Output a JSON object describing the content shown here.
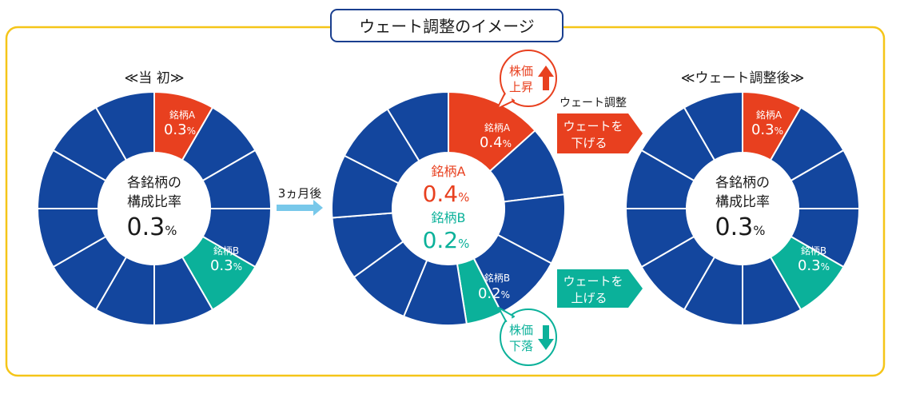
{
  "title": "ウェート調整のイメージ",
  "colors": {
    "frame": "#f5c518",
    "title_border": "#1a3f8f",
    "blue": "#13469e",
    "red": "#e8401f",
    "green": "#0bb19a",
    "arrow_light": "#78c8ea",
    "text_dark": "#1a1a1a"
  },
  "segments_per_ring": 12,
  "left": {
    "heading": "≪当 初≫",
    "center_line1": "各銘柄の",
    "center_line2": "構成比率",
    "center_value": "0.3",
    "center_unit": "%",
    "seg_a_name": "銘柄A",
    "seg_a_value": "0.3",
    "seg_a_unit": "%",
    "seg_b_name": "銘柄B",
    "seg_b_value": "0.3",
    "seg_b_unit": "%"
  },
  "middle": {
    "arrow_label": "3ヵ月後",
    "center_a_name": "銘柄A",
    "center_a_value": "0.4",
    "center_a_unit": "%",
    "center_b_name": "銘柄B",
    "center_b_value": "0.2",
    "center_b_unit": "%",
    "seg_a_name": "銘柄A",
    "seg_a_value": "0.4",
    "seg_a_unit": "%",
    "seg_b_name": "銘柄B",
    "seg_b_value": "0.2",
    "seg_b_unit": "%",
    "bubble_up_line1": "株価",
    "bubble_up_line2": "上昇",
    "bubble_down_line1": "株価",
    "bubble_down_line2": "下落"
  },
  "adjust": {
    "label": "ウェート調整",
    "down_line1": "ウェートを",
    "down_line2": "下げる",
    "up_line1": "ウェートを",
    "up_line2": "上げる"
  },
  "right": {
    "heading": "≪ウェート調整後≫",
    "center_line1": "各銘柄の",
    "center_line2": "構成比率",
    "center_value": "0.3",
    "center_unit": "%",
    "seg_a_name": "銘柄A",
    "seg_a_value": "0.3",
    "seg_a_unit": "%",
    "seg_b_name": "銘柄B",
    "seg_b_value": "0.3",
    "seg_b_unit": "%"
  }
}
